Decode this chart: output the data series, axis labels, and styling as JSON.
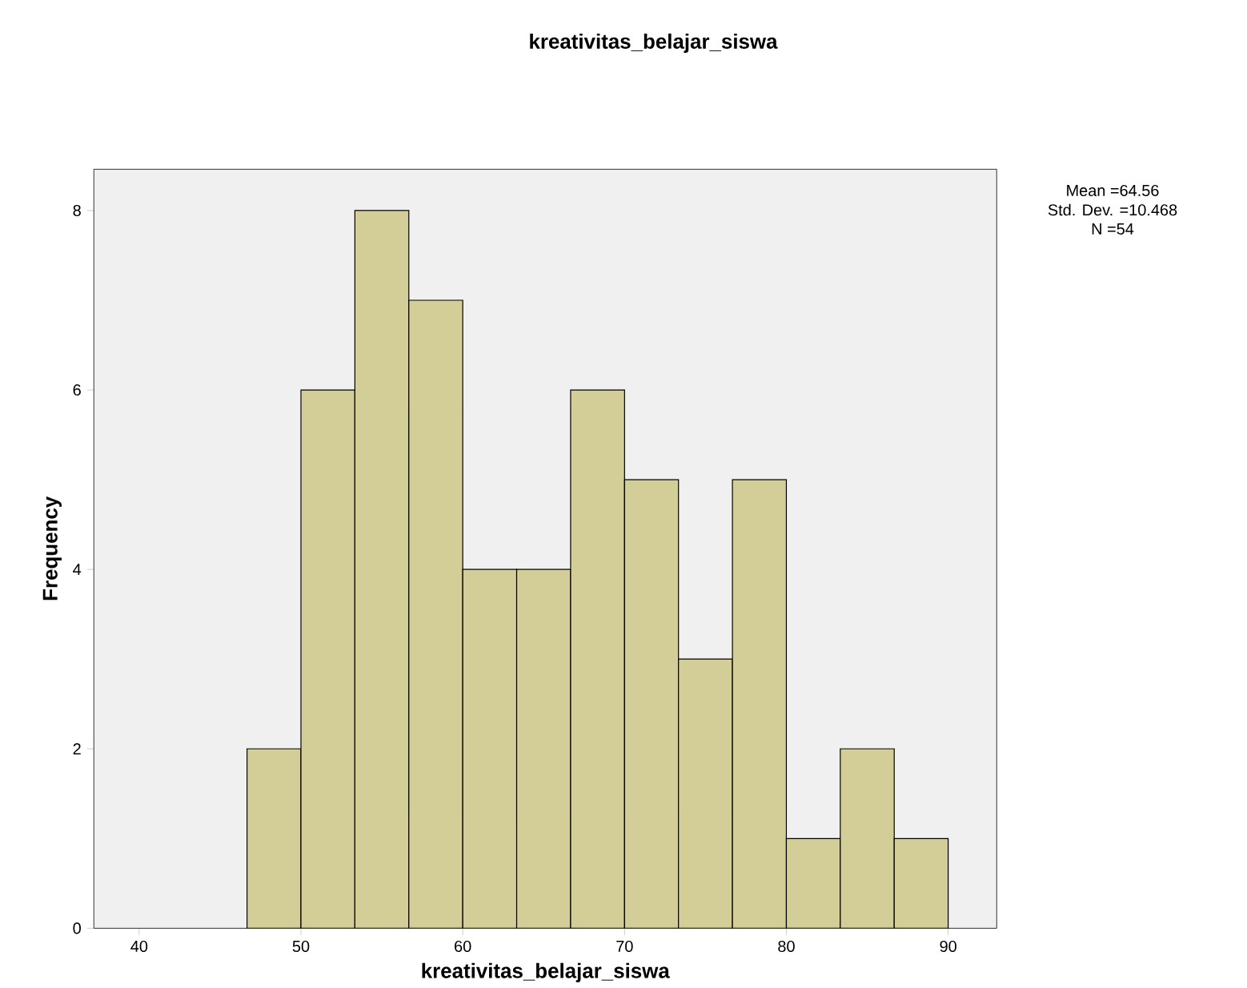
{
  "chart_data": {
    "type": "histogram",
    "title": "kreativitas_belajar_siswa",
    "xlabel": "kreativitas_belajar_siswa",
    "ylabel": "Frequency",
    "bins": [
      46.667,
      50,
      53.333,
      56.667,
      60,
      63.333,
      66.667,
      70,
      73.333,
      76.667,
      80,
      83.333,
      86.667,
      90
    ],
    "values": [
      2,
      6,
      8,
      7,
      4,
      4,
      6,
      5,
      3,
      5,
      1,
      2,
      1
    ],
    "color": "#d3ce97",
    "xlim": [
      37.2,
      93
    ],
    "ylim": [
      0,
      8.46
    ],
    "xticks": [
      40,
      50,
      60,
      70,
      80,
      90
    ],
    "yticks": [
      0,
      2,
      4,
      6,
      8
    ],
    "grid": false,
    "annotations": [
      "Mean =64.56",
      "Std. Dev. =10.468",
      "N =54"
    ]
  }
}
